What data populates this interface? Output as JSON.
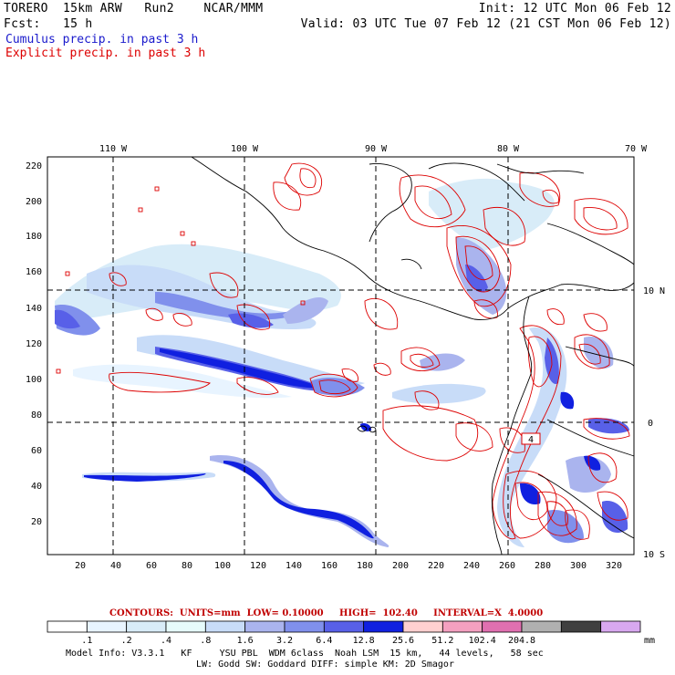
{
  "header": {
    "line1_left": "TORERO  15km ARW   Run2    NCAR/MMM",
    "line1_right": "Init: 12 UTC Mon 06 Feb 12",
    "line2_left": "Fcst:   15 h",
    "line2_right": "Valid: 03 UTC Tue 07 Feb 12 (21 CST Mon 06 Feb 12)",
    "legend_cumulus": "Cumulus precip. in past 3 h",
    "legend_explicit": "Explicit precip. in past 3 h"
  },
  "colors": {
    "cumulus": "#1a1acc",
    "explicit": "#dd0000",
    "background": "#ffffff"
  },
  "map": {
    "lon_labels": [
      "110 W",
      "100 W",
      "90 W",
      "80 W",
      "70 W"
    ],
    "lat_labels": [
      "10 N",
      "0",
      "10 S"
    ],
    "y_ticks": [
      "220",
      "200",
      "180",
      "160",
      "140",
      "120",
      "100",
      "80",
      "60",
      "40",
      "20"
    ],
    "x_ticks": [
      "20",
      "40",
      "60",
      "80",
      "100",
      "120",
      "140",
      "160",
      "180",
      "200",
      "220",
      "240",
      "260",
      "280",
      "300",
      "320"
    ],
    "box_label": "4"
  },
  "contours": {
    "title": "CONTOURS:  UNITS=mm  LOW= 0.10000     HIGH=  102.40     INTERVAL=X  4.0000"
  },
  "colorbar": {
    "labels": [
      ".1",
      ".2",
      ".4",
      ".8",
      "1.6",
      "3.2",
      "6.4",
      "12.8",
      "25.6",
      "51.2",
      "102.4",
      "204.8"
    ],
    "units": "mm",
    "colors": [
      "#ffffff",
      "#e8f4ff",
      "#d8ecf8",
      "#e6fbfb",
      "#c8dcf8",
      "#aab4ee",
      "#8090ec",
      "#5860e8",
      "#1020e0",
      "#ffd0d0",
      "#f4a0c0",
      "#e070b0",
      "#b0b0b0",
      "#404040",
      "#d8a8f0"
    ]
  },
  "model_info": {
    "line1": "Model Info: V3.3.1   KF     YSU PBL  WDM 6class  Noah LSM  15 km,   44 levels,   58 sec",
    "line2": "LW: Godd SW: Goddard DIFF: simple KM: 2D Smagor"
  }
}
